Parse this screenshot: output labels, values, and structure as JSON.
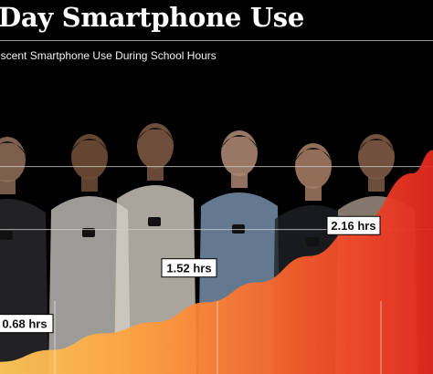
{
  "header": {
    "title": "Day Smartphone Use",
    "subtitle": "escent Smartphone Use During School Hours"
  },
  "chart_data": {
    "type": "area",
    "title": "Day Smartphone Use",
    "subtitle": "escent Smartphone Use During School Hours",
    "xlabel": "",
    "ylabel": "",
    "ylim": [
      0,
      3.5
    ],
    "grid": true,
    "points": [
      {
        "value": 0.68,
        "label": "0.68 hrs"
      },
      {
        "value": 1.52,
        "label": "1.52 hrs"
      },
      {
        "value": 2.16,
        "label": "2.16 hrs"
      }
    ],
    "curve": [
      {
        "x": 0.0,
        "y": 0.1
      },
      {
        "x": 0.5,
        "y": 0.28
      },
      {
        "x": 1.0,
        "y": 0.53
      },
      {
        "x": 1.5,
        "y": 0.7
      },
      {
        "x": 2.0,
        "y": 1.0
      },
      {
        "x": 2.5,
        "y": 1.3
      },
      {
        "x": 3.0,
        "y": 1.7
      },
      {
        "x": 3.5,
        "y": 2.2
      },
      {
        "x": 4.0,
        "y": 2.95
      },
      {
        "x": 4.2,
        "y": 3.3
      }
    ],
    "colors": {
      "low": "#ffc95a",
      "mid": "#fb6a2e",
      "high": "#e3281f"
    }
  },
  "background": {
    "description_icon": "teenagers-photo"
  }
}
